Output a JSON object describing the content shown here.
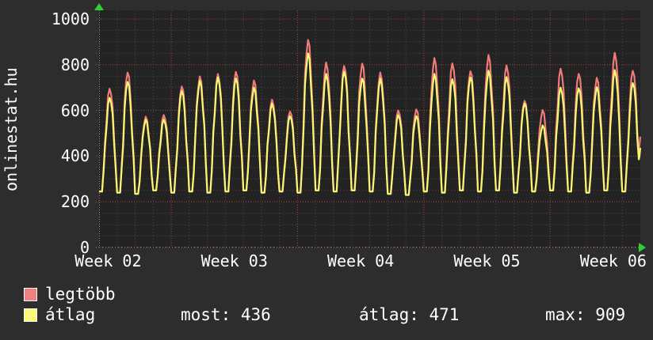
{
  "site_label": "onlinestat.hu",
  "colors": {
    "background": "#2d2d2d",
    "plot_background": "#232323",
    "text": "#ffffff",
    "grid_major": "#a34545",
    "grid_minor": "#4d4d4d",
    "axis": "#8f8f8f",
    "arrow_green": "#33cc33",
    "series_legtobb": "#ef7b7b",
    "series_atlag": "#f7f772"
  },
  "chart_data": {
    "type": "line",
    "title": "",
    "xlabel": "",
    "ylabel": "",
    "grid": true,
    "y_axis": {
      "min": 0,
      "max": 1000,
      "ticks": [
        0,
        200,
        400,
        600,
        800,
        1000
      ],
      "minor_step": 50
    },
    "x_axis": {
      "labels": [
        "Week 02",
        "Week 03",
        "Week 04",
        "Week 05",
        "Week 06"
      ],
      "label_center_days": [
        0.5,
        7.5,
        14.5,
        21.5,
        28.5
      ],
      "week_boundary_days": [
        4,
        11,
        18,
        25
      ],
      "days_shown": 30
    },
    "daily_mins": [
      245,
      240,
      235,
      250,
      240,
      245,
      240,
      245,
      250,
      240,
      245,
      240,
      250,
      245,
      250,
      245,
      235,
      230,
      245,
      240,
      250,
      245,
      250,
      240,
      245,
      250,
      245,
      240,
      250,
      245
    ],
    "series": [
      {
        "name": "legtöbb",
        "color": "#ef7b7b",
        "daily_peaks": [
          695,
          766,
          573,
          580,
          705,
          749,
          760,
          769,
          731,
          647,
          595,
          909,
          810,
          795,
          805,
          766,
          600,
          605,
          830,
          806,
          772,
          843,
          797,
          642,
          602,
          783,
          760,
          743,
          852,
          774
        ],
        "end_value": 485
      },
      {
        "name": "átlag",
        "color": "#f7f772",
        "daily_peaks": [
          655,
          725,
          560,
          560,
          685,
          730,
          745,
          740,
          700,
          630,
          575,
          850,
          760,
          770,
          740,
          740,
          580,
          575,
          760,
          737,
          745,
          774,
          746,
          630,
          535,
          700,
          697,
          702,
          777,
          720
        ],
        "end_value": 436
      }
    ],
    "stats": {
      "most": 436,
      "atlag": 471,
      "max": 909
    },
    "legend_position": "bottom-left"
  },
  "legend": {
    "items": [
      {
        "label": "legtöbb",
        "color": "#f08080"
      },
      {
        "label": "átlag",
        "color": "#fafa78"
      }
    ],
    "stats": [
      {
        "label": "most:",
        "value": "436"
      },
      {
        "label": "átlag:",
        "value": "471"
      },
      {
        "label": "max:",
        "value": "909"
      }
    ]
  }
}
